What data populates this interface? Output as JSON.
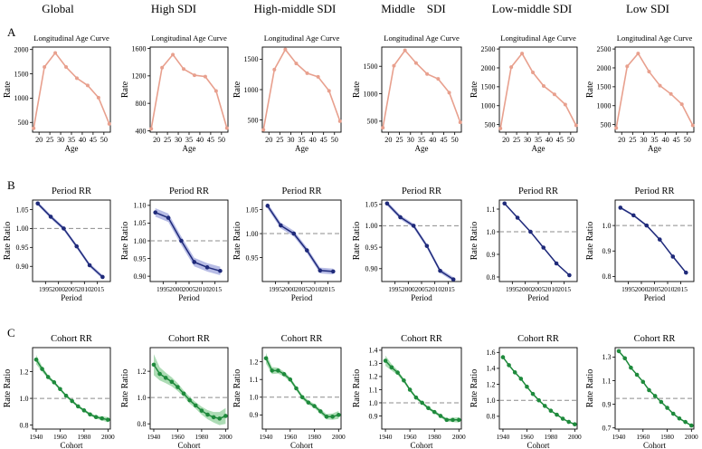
{
  "columns": [
    "Global",
    "High SDI",
    "High-middle SDI",
    "Middle    SDI",
    "Low-middle SDI",
    "Low SDI"
  ],
  "row_labels": [
    "A",
    "B",
    "C"
  ],
  "colors": {
    "age_line": "#e8a08e",
    "period_line": "#1f2a7a",
    "period_band": "#aab0e0",
    "cohort_line": "#1e8a3c",
    "cohort_band": "#9fd6a8",
    "reference": "#8c8c8c",
    "axis": "#000000"
  },
  "chart_data": [
    {
      "type": "line",
      "row": "A",
      "panel": "Global",
      "title": "Longitudinal Age Curve",
      "xlabel": "Age",
      "ylabel": "Rate",
      "xlim": [
        17,
        53
      ],
      "ylim": [
        300,
        2050
      ],
      "xticks": [
        20,
        25,
        30,
        35,
        40,
        45,
        50
      ],
      "xticklabels": [
        "20",
        "25",
        "30",
        "35",
        "40",
        "45",
        "50"
      ],
      "yticks": [
        500,
        1000,
        1500,
        2000
      ],
      "yticklabels": [
        "500",
        "1000",
        "1500",
        "2000"
      ],
      "x": [
        17.5,
        22.5,
        27.5,
        32.5,
        37.5,
        42.5,
        47.5,
        52.5
      ],
      "y": [
        380,
        1640,
        1930,
        1640,
        1410,
        1260,
        1010,
        470
      ]
    },
    {
      "type": "line",
      "row": "A",
      "panel": "High SDI",
      "title": "Longitudinal Age Curve",
      "xlabel": "Age",
      "ylabel": "Rate",
      "xlim": [
        17,
        53
      ],
      "ylim": [
        380,
        1620
      ],
      "xticks": [
        20,
        25,
        30,
        35,
        40,
        45,
        50
      ],
      "xticklabels": [
        "20",
        "25",
        "30",
        "35",
        "40",
        "45",
        "50"
      ],
      "yticks": [
        400,
        800,
        1200,
        1600
      ],
      "yticklabels": [
        "400",
        "800",
        "1200",
        "1600"
      ],
      "x": [
        17.5,
        22.5,
        27.5,
        32.5,
        37.5,
        42.5,
        47.5,
        52.5
      ],
      "y": [
        430,
        1320,
        1510,
        1300,
        1210,
        1190,
        980,
        440
      ]
    },
    {
      "type": "line",
      "row": "A",
      "panel": "High-middle SDI",
      "title": "Longitudinal Age Curve",
      "xlabel": "Age",
      "ylabel": "Rate",
      "xlim": [
        17,
        53
      ],
      "ylim": [
        300,
        1700
      ],
      "xticks": [
        20,
        25,
        30,
        35,
        40,
        45,
        50
      ],
      "xticklabels": [
        "20",
        "25",
        "30",
        "35",
        "40",
        "45",
        "50"
      ],
      "yticks": [
        500,
        1000,
        1500
      ],
      "yticklabels": [
        "500",
        "1000",
        "1500"
      ],
      "x": [
        17.5,
        22.5,
        27.5,
        32.5,
        37.5,
        42.5,
        47.5,
        52.5
      ],
      "y": [
        340,
        1330,
        1660,
        1430,
        1270,
        1210,
        980,
        480
      ]
    },
    {
      "type": "line",
      "row": "A",
      "panel": "Middle    SDI",
      "title": "Longitudinal Age Curve",
      "xlabel": "Age",
      "ylabel": "Rate",
      "xlim": [
        17,
        53
      ],
      "ylim": [
        300,
        1850
      ],
      "xticks": [
        20,
        25,
        30,
        35,
        40,
        45,
        50
      ],
      "xticklabels": [
        "20",
        "25",
        "30",
        "35",
        "40",
        "45",
        "50"
      ],
      "yticks": [
        500,
        1000,
        1500
      ],
      "yticklabels": [
        "500",
        "1000",
        "1500"
      ],
      "x": [
        17.5,
        22.5,
        27.5,
        32.5,
        37.5,
        42.5,
        47.5,
        52.5
      ],
      "y": [
        380,
        1510,
        1790,
        1560,
        1360,
        1270,
        1020,
        480
      ]
    },
    {
      "type": "line",
      "row": "A",
      "panel": "Low-middle SDI",
      "title": "Longitudinal Age Curve",
      "xlabel": "Age",
      "ylabel": "Rate",
      "xlim": [
        17,
        53
      ],
      "ylim": [
        300,
        2550
      ],
      "xticks": [
        20,
        25,
        30,
        35,
        40,
        45,
        50
      ],
      "xticklabels": [
        "20",
        "25",
        "30",
        "35",
        "40",
        "45",
        "50"
      ],
      "yticks": [
        500,
        1000,
        1500,
        2000,
        2500
      ],
      "yticklabels": [
        "500",
        "1000",
        "1500",
        "2000",
        "2500"
      ],
      "x": [
        17.5,
        22.5,
        27.5,
        32.5,
        37.5,
        42.5,
        47.5,
        52.5
      ],
      "y": [
        400,
        2020,
        2380,
        1880,
        1520,
        1300,
        1030,
        480
      ]
    },
    {
      "type": "line",
      "row": "A",
      "panel": "Low SDI",
      "title": "Longitudinal Age Curve",
      "xlabel": "Age",
      "ylabel": "Rate",
      "xlim": [
        17,
        53
      ],
      "ylim": [
        300,
        2550
      ],
      "xticks": [
        20,
        25,
        30,
        35,
        40,
        45,
        50
      ],
      "xticklabels": [
        "20",
        "25",
        "30",
        "35",
        "40",
        "45",
        "50"
      ],
      "yticks": [
        500,
        1000,
        1500,
        2000,
        2500
      ],
      "yticklabels": [
        "500",
        "1000",
        "1500",
        "2000",
        "2500"
      ],
      "x": [
        17.5,
        22.5,
        27.5,
        32.5,
        37.5,
        42.5,
        47.5,
        52.5
      ],
      "y": [
        410,
        2040,
        2380,
        1900,
        1530,
        1310,
        1040,
        480
      ]
    },
    {
      "type": "line",
      "row": "B",
      "panel": "Global",
      "title": "Period RR",
      "xlabel": "Period",
      "ylabel": "Rate Ratio",
      "xlim": [
        1990,
        2020
      ],
      "ylim": [
        0.86,
        1.075
      ],
      "xticks": [
        1995,
        2000,
        2005,
        2010,
        2015
      ],
      "xticklabels": [
        "1995",
        "2000",
        "2005",
        "2010",
        "2015"
      ],
      "yticks": [
        0.9,
        0.95,
        1.0,
        1.05
      ],
      "yticklabels": [
        "0.90",
        "0.95",
        "1.00",
        "1.05"
      ],
      "reference": 1.0,
      "x": [
        1992,
        1997,
        2002,
        2007,
        2012,
        2017
      ],
      "y": [
        1.066,
        1.031,
        1.0,
        0.953,
        0.903,
        0.872
      ],
      "band": 0.005
    },
    {
      "type": "line",
      "row": "B",
      "panel": "High SDI",
      "title": "Period RR",
      "xlabel": "Period",
      "ylabel": "Rate Ratio",
      "xlim": [
        1990,
        2020
      ],
      "ylim": [
        0.885,
        1.115
      ],
      "xticks": [
        1995,
        2000,
        2005,
        2010,
        2015
      ],
      "xticklabels": [
        "1995",
        "2000",
        "2005",
        "2010",
        "2015"
      ],
      "yticks": [
        0.9,
        0.95,
        1.0,
        1.05,
        1.1
      ],
      "yticklabels": [
        "0.90",
        "0.95",
        "1.00",
        "1.05",
        "1.10"
      ],
      "reference": 1.0,
      "x": [
        1992,
        1997,
        2002,
        2007,
        2012,
        2017
      ],
      "y": [
        1.08,
        1.065,
        1.0,
        0.94,
        0.925,
        0.915
      ],
      "band": 0.012
    },
    {
      "type": "line",
      "row": "B",
      "panel": "High-middle SDI",
      "title": "Period RR",
      "xlabel": "Period",
      "ylabel": "Rate Ratio",
      "xlim": [
        1990,
        2020
      ],
      "ylim": [
        0.9,
        1.07
      ],
      "xticks": [
        1995,
        2000,
        2005,
        2010,
        2015
      ],
      "xticklabels": [
        "1995",
        "2000",
        "2005",
        "2010",
        "2015"
      ],
      "yticks": [
        0.95,
        1.0,
        1.05
      ],
      "yticklabels": [
        "0.95",
        "1.00",
        "1.05"
      ],
      "reference": 1.0,
      "x": [
        1992,
        1997,
        2002,
        2007,
        2012,
        2017
      ],
      "y": [
        1.058,
        1.017,
        1.0,
        0.965,
        0.923,
        0.921
      ],
      "band": 0.006
    },
    {
      "type": "line",
      "row": "B",
      "panel": "Middle    SDI",
      "title": "Period RR",
      "xlabel": "Period",
      "ylabel": "Rate Ratio",
      "xlim": [
        1990,
        2020
      ],
      "ylim": [
        0.87,
        1.06
      ],
      "xticks": [
        1995,
        2000,
        2005,
        2010,
        2015
      ],
      "xticklabels": [
        "1995",
        "2000",
        "2005",
        "2010",
        "2015"
      ],
      "yticks": [
        0.9,
        0.95,
        1.0,
        1.05
      ],
      "yticklabels": [
        "0.90",
        "0.95",
        "1.00",
        "1.05"
      ],
      "reference": 1.0,
      "x": [
        1992,
        1997,
        2002,
        2007,
        2012,
        2017
      ],
      "y": [
        1.052,
        1.02,
        1.0,
        0.953,
        0.895,
        0.875
      ],
      "band": 0.005
    },
    {
      "type": "line",
      "row": "B",
      "panel": "Low-middle SDI",
      "title": "Period RR",
      "xlabel": "Period",
      "ylabel": "Rate Ratio",
      "xlim": [
        1990,
        2020
      ],
      "ylim": [
        0.78,
        1.14
      ],
      "xticks": [
        1995,
        2000,
        2005,
        2010,
        2015
      ],
      "xticklabels": [
        "1995",
        "2000",
        "2005",
        "2010",
        "2015"
      ],
      "yticks": [
        0.8,
        0.9,
        1.0,
        1.1
      ],
      "yticklabels": [
        "0.8",
        "0.9",
        "1.0",
        "1.1"
      ],
      "reference": 1.0,
      "x": [
        1992,
        1997,
        2002,
        2007,
        2012,
        2017
      ],
      "y": [
        1.125,
        1.062,
        1.0,
        0.93,
        0.86,
        0.808
      ],
      "band": 0.004
    },
    {
      "type": "line",
      "row": "B",
      "panel": "Low SDI",
      "title": "Period RR",
      "xlabel": "Period",
      "ylabel": "Rate Ratio",
      "xlim": [
        1990,
        2020
      ],
      "ylim": [
        0.78,
        1.1
      ],
      "xticks": [
        1995,
        2000,
        2005,
        2010,
        2015
      ],
      "xticklabels": [
        "1995",
        "2000",
        "2005",
        "2010",
        "2015"
      ],
      "yticks": [
        0.8,
        0.9,
        1.0
      ],
      "yticklabels": [
        "0.8",
        "0.9",
        "1.0"
      ],
      "reference": 1.0,
      "x": [
        1992,
        1997,
        2002,
        2007,
        2012,
        2017
      ],
      "y": [
        1.07,
        1.04,
        1.0,
        0.945,
        0.878,
        0.815
      ],
      "band": 0.004
    },
    {
      "type": "line",
      "row": "C",
      "panel": "Global",
      "title": "Cohort RR",
      "xlabel": "Cohort",
      "ylabel": "Rate Ratio",
      "xlim": [
        1937,
        2002
      ],
      "ylim": [
        0.77,
        1.38
      ],
      "xticks": [
        1940,
        1960,
        1980,
        2000
      ],
      "xticklabels": [
        "1940",
        "1960",
        "1980",
        "2000"
      ],
      "yticks": [
        0.8,
        1.0,
        1.2
      ],
      "yticklabels": [
        "0.8",
        "1.0",
        "1.2"
      ],
      "reference": 1.0,
      "x": [
        1940,
        1945,
        1950,
        1955,
        1960,
        1965,
        1970,
        1975,
        1980,
        1985,
        1990,
        1995,
        2000
      ],
      "y": [
        1.29,
        1.22,
        1.16,
        1.12,
        1.07,
        1.02,
        0.98,
        0.94,
        0.91,
        0.88,
        0.86,
        0.85,
        0.84
      ],
      "band": [
        0.035,
        0.02,
        0.014,
        0.011,
        0.01,
        0.01,
        0.01,
        0.01,
        0.01,
        0.01,
        0.012,
        0.015,
        0.02
      ]
    },
    {
      "type": "line",
      "row": "C",
      "panel": "High SDI",
      "title": "Cohort RR",
      "xlabel": "Cohort",
      "ylabel": "Rate Ratio",
      "xlim": [
        1937,
        2002
      ],
      "ylim": [
        0.76,
        1.38
      ],
      "xticks": [
        1940,
        1960,
        1980,
        2000
      ],
      "xticklabels": [
        "1940",
        "1960",
        "1980",
        "2000"
      ],
      "yticks": [
        0.8,
        1.0,
        1.2
      ],
      "yticklabels": [
        "0.8",
        "1.0",
        "1.2"
      ],
      "reference": 1.0,
      "x": [
        1940,
        1945,
        1950,
        1955,
        1960,
        1965,
        1970,
        1975,
        1980,
        1985,
        1990,
        1995,
        2000
      ],
      "y": [
        1.25,
        1.18,
        1.15,
        1.12,
        1.08,
        1.03,
        0.98,
        0.94,
        0.9,
        0.87,
        0.85,
        0.84,
        0.86
      ],
      "band": [
        0.08,
        0.05,
        0.04,
        0.035,
        0.03,
        0.025,
        0.025,
        0.025,
        0.03,
        0.035,
        0.04,
        0.05,
        0.06
      ]
    },
    {
      "type": "line",
      "row": "C",
      "panel": "High-middle SDI",
      "title": "Cohort RR",
      "xlabel": "Cohort",
      "ylabel": "Rate Ratio",
      "xlim": [
        1937,
        2002
      ],
      "ylim": [
        0.82,
        1.28
      ],
      "xticks": [
        1940,
        1960,
        1980,
        2000
      ],
      "xticklabels": [
        "1940",
        "1960",
        "1980",
        "2000"
      ],
      "yticks": [
        0.9,
        1.0,
        1.1,
        1.2
      ],
      "yticklabels": [
        "0.9",
        "1.0",
        "1.1",
        "1.2"
      ],
      "reference": 1.0,
      "x": [
        1940,
        1945,
        1950,
        1955,
        1960,
        1965,
        1970,
        1975,
        1980,
        1985,
        1990,
        1995,
        2000
      ],
      "y": [
        1.22,
        1.15,
        1.15,
        1.13,
        1.1,
        1.05,
        1.0,
        0.97,
        0.95,
        0.92,
        0.89,
        0.89,
        0.9
      ],
      "band": [
        0.03,
        0.02,
        0.016,
        0.014,
        0.012,
        0.012,
        0.012,
        0.012,
        0.012,
        0.013,
        0.015,
        0.018,
        0.022
      ]
    },
    {
      "type": "line",
      "row": "C",
      "panel": "Middle    SDI",
      "title": "Cohort RR",
      "xlabel": "Cohort",
      "ylabel": "Rate Ratio",
      "xlim": [
        1937,
        2002
      ],
      "ylim": [
        0.8,
        1.42
      ],
      "xticks": [
        1940,
        1960,
        1980,
        2000
      ],
      "xticklabels": [
        "1940",
        "1960",
        "1980",
        "2000"
      ],
      "yticks": [
        0.9,
        1.0,
        1.1,
        1.2,
        1.3,
        1.4
      ],
      "yticklabels": [
        "0.9",
        "1.0",
        "1.1",
        "1.2",
        "1.3",
        "1.4"
      ],
      "reference": 1.0,
      "x": [
        1940,
        1945,
        1950,
        1955,
        1960,
        1965,
        1970,
        1975,
        1980,
        1985,
        1990,
        1995,
        2000
      ],
      "y": [
        1.32,
        1.27,
        1.23,
        1.17,
        1.1,
        1.04,
        1.0,
        0.96,
        0.93,
        0.9,
        0.87,
        0.87,
        0.87
      ],
      "band": [
        0.04,
        0.025,
        0.018,
        0.014,
        0.012,
        0.011,
        0.011,
        0.011,
        0.011,
        0.012,
        0.013,
        0.016,
        0.02
      ]
    },
    {
      "type": "line",
      "row": "C",
      "panel": "Low-middle SDI",
      "title": "Cohort RR",
      "xlabel": "Cohort",
      "ylabel": "Rate Ratio",
      "xlim": [
        1937,
        2002
      ],
      "ylim": [
        0.64,
        1.66
      ],
      "xticks": [
        1940,
        1960,
        1980,
        2000
      ],
      "xticklabels": [
        "1940",
        "1960",
        "1980",
        "2000"
      ],
      "yticks": [
        0.8,
        1.0,
        1.2,
        1.4,
        1.6
      ],
      "yticklabels": [
        "0.8",
        "1.0",
        "1.2",
        "1.4",
        "1.6"
      ],
      "reference": 1.0,
      "x": [
        1940,
        1945,
        1950,
        1955,
        1960,
        1965,
        1970,
        1975,
        1980,
        1985,
        1990,
        1995,
        2000
      ],
      "y": [
        1.54,
        1.44,
        1.35,
        1.27,
        1.17,
        1.08,
        1.0,
        0.93,
        0.87,
        0.82,
        0.77,
        0.73,
        0.7
      ],
      "band": 0.008
    },
    {
      "type": "line",
      "row": "C",
      "panel": "Low SDI",
      "title": "Cohort RR",
      "xlabel": "Cohort",
      "ylabel": "Rate Ratio",
      "xlim": [
        1937,
        2002
      ],
      "ylim": [
        0.69,
        1.38
      ],
      "xticks": [
        1940,
        1960,
        1980,
        2000
      ],
      "xticklabels": [
        "1940",
        "1960",
        "1980",
        "2000"
      ],
      "yticks": [
        0.7,
        0.9,
        1.1,
        1.3
      ],
      "yticklabels": [
        "0.7",
        "0.9",
        "1.1",
        "1.3"
      ],
      "reference": 0.95,
      "x": [
        1940,
        1945,
        1950,
        1955,
        1960,
        1965,
        1970,
        1975,
        1980,
        1985,
        1990,
        1995,
        2000
      ],
      "y": [
        1.35,
        1.29,
        1.21,
        1.15,
        1.09,
        1.02,
        0.97,
        0.92,
        0.87,
        0.82,
        0.78,
        0.75,
        0.72
      ],
      "band": 0.006
    }
  ]
}
